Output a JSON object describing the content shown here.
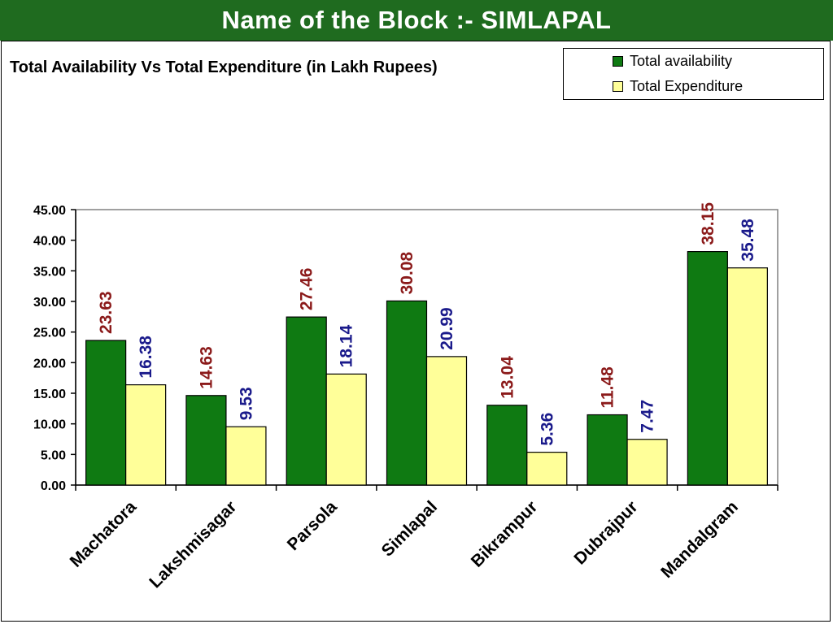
{
  "page": {
    "banner_title": "Name of the Block :- SIMLAPAL"
  },
  "colors": {
    "banner_bg": "#1f6b1f",
    "availability_bar": "#0f7a12",
    "expenditure_bar": "#ffff99",
    "availability_label": "#8b1a1a",
    "expenditure_label": "#1a1a8b"
  },
  "chart_data": {
    "type": "bar",
    "title": "Total Availability Vs Total Expenditure (in Lakh Rupees)",
    "xlabel": "",
    "ylabel": "",
    "ylim": [
      0,
      45
    ],
    "yticks": [
      "0.00",
      "5.00",
      "10.00",
      "15.00",
      "20.00",
      "25.00",
      "30.00",
      "35.00",
      "40.00",
      "45.00"
    ],
    "categories": [
      "Machatora",
      "Lakshmisagar",
      "Parsola",
      "Simlapal",
      "Bikrampur",
      "Dubrajpur",
      "Mandalgram"
    ],
    "series": [
      {
        "name": "Total availability",
        "values": [
          23.63,
          14.63,
          27.46,
          30.08,
          13.04,
          11.48,
          38.15
        ],
        "labels": [
          "23.63",
          "14.63",
          "27.46",
          "30.08",
          "13.04",
          "11.48",
          "38.15"
        ]
      },
      {
        "name": "Total Expenditure",
        "values": [
          16.38,
          9.53,
          18.14,
          20.99,
          5.36,
          7.47,
          35.48
        ],
        "labels": [
          "16.38",
          "9.53",
          "18.14",
          "20.99",
          "5.36",
          "7.47",
          "35.48"
        ]
      }
    ],
    "grid": false,
    "legend_position": "top-right"
  }
}
